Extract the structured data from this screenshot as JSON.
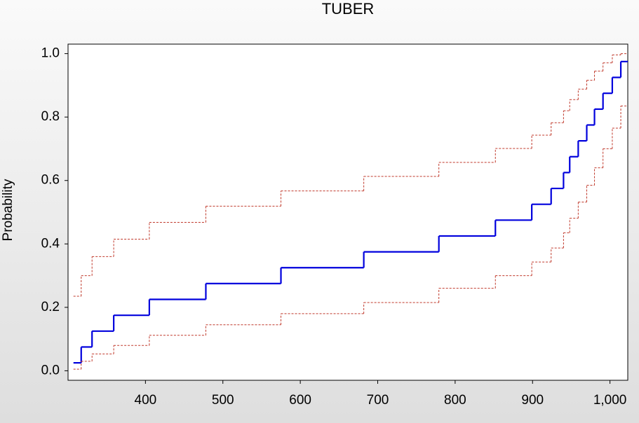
{
  "chart_data": {
    "type": "step",
    "title": "TUBER",
    "y_label": "Probability",
    "x": [
      307,
      317,
      331,
      359,
      405,
      478,
      575,
      682,
      779,
      852,
      899,
      924,
      940,
      948,
      959,
      970,
      980,
      991,
      1003,
      1014
    ],
    "series": [
      {
        "color": "#0000dd",
        "dashed": false,
        "width": 2.2,
        "values": [
          0.025,
          0.075,
          0.125,
          0.175,
          0.225,
          0.275,
          0.325,
          0.375,
          0.425,
          0.475,
          0.525,
          0.575,
          0.625,
          0.675,
          0.725,
          0.775,
          0.825,
          0.875,
          0.925,
          0.975
        ]
      },
      {
        "color": "#c0392b",
        "dashed": true,
        "width": 1,
        "values": [
          0.235,
          0.3,
          0.36,
          0.415,
          0.468,
          0.519,
          0.567,
          0.613,
          0.657,
          0.701,
          0.743,
          0.782,
          0.82,
          0.855,
          0.888,
          0.916,
          0.945,
          0.971,
          0.996,
          1.0
        ]
      },
      {
        "color": "#c0392b",
        "dashed": true,
        "width": 1,
        "values": [
          0.005,
          0.03,
          0.053,
          0.08,
          0.112,
          0.145,
          0.18,
          0.215,
          0.26,
          0.3,
          0.343,
          0.387,
          0.435,
          0.481,
          0.532,
          0.585,
          0.64,
          0.7,
          0.765,
          0.835
        ]
      }
    ],
    "xlim": [
      300,
      1023
    ],
    "ylim": [
      -0.03,
      1.03
    ],
    "xticks": [
      400,
      500,
      600,
      700,
      800,
      900,
      {
        "value": 1000,
        "label": "1,000"
      }
    ],
    "yticks": [
      {
        "value": 0,
        "label": "0.0"
      },
      0.2,
      0.4,
      0.6,
      0.8,
      {
        "value": 1,
        "label": "1.0"
      }
    ]
  }
}
